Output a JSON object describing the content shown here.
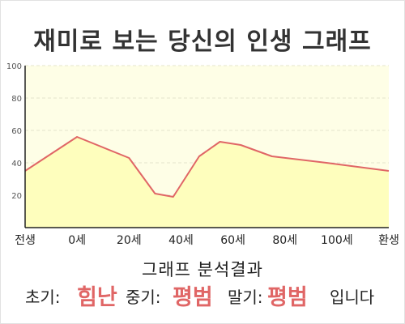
{
  "title": "재미로 보는 당신의 인생 그래프",
  "chart_data": {
    "type": "area",
    "x_labels": [
      "전생",
      "0세",
      "20세",
      "40세",
      "60세",
      "80세",
      "100세",
      "환생"
    ],
    "x": [
      -20,
      0,
      20,
      40,
      60,
      80,
      100,
      120
    ],
    "points": [
      {
        "x": -20,
        "y": 35
      },
      {
        "x": 0,
        "y": 56
      },
      {
        "x": 20,
        "y": 43
      },
      {
        "x": 30,
        "y": 21
      },
      {
        "x": 37,
        "y": 19
      },
      {
        "x": 47,
        "y": 44
      },
      {
        "x": 55,
        "y": 53
      },
      {
        "x": 63,
        "y": 51
      },
      {
        "x": 75,
        "y": 44
      },
      {
        "x": 96,
        "y": 40
      },
      {
        "x": 120,
        "y": 35
      }
    ],
    "yticks": [
      100,
      80,
      60,
      40,
      20
    ],
    "ylim": [
      0,
      100
    ],
    "xlim": [
      -20,
      120
    ],
    "grid": true,
    "colors": {
      "line": "#e06666",
      "fill": "#fefebd",
      "plot_background": "#fefee6",
      "grid": "#e4e4cc",
      "axis": "#222222"
    }
  },
  "analysis": {
    "heading": "그래프 분석결과",
    "early_label": "초기:",
    "early_value": "힘난",
    "middle_label": "중기:",
    "middle_value": "평범",
    "late_label": "말기:",
    "late_value": "평범",
    "suffix": "입니다",
    "highlight_color": "#e06666"
  }
}
